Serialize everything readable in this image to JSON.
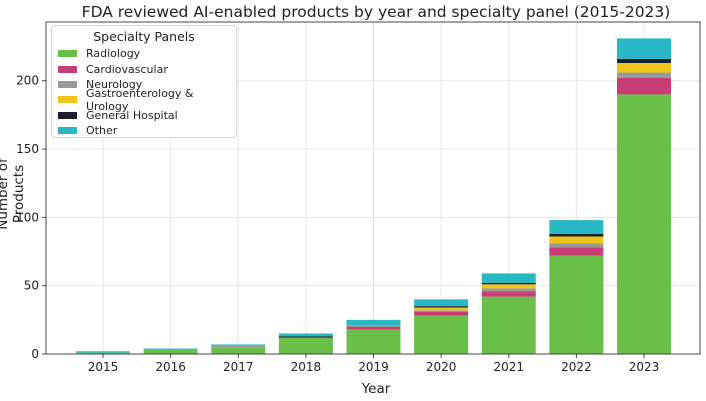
{
  "chart_data": {
    "type": "bar",
    "stacked": true,
    "title": "FDA reviewed AI-enabled products by year and specialty panel (2015-2023)",
    "xlabel": "Year",
    "ylabel": "Number of Products",
    "ylim": [
      0,
      243
    ],
    "yticks": [
      0,
      50,
      100,
      150,
      200
    ],
    "grid": true,
    "legend_title": "Specialty Panels",
    "legend_position": "top-left",
    "categories": [
      "2015",
      "2016",
      "2017",
      "2018",
      "2019",
      "2020",
      "2021",
      "2022",
      "2023"
    ],
    "series": [
      {
        "name": "Radiology",
        "color": "#6abf4b",
        "values": [
          1,
          3,
          5,
          12,
          18,
          28,
          42,
          72,
          190
        ]
      },
      {
        "name": "Cardiovascular",
        "color": "#c93d77",
        "values": [
          0,
          0,
          0,
          0,
          2,
          3,
          4,
          6,
          12
        ]
      },
      {
        "name": "Neurology",
        "color": "#999999",
        "values": [
          0,
          0,
          1,
          0,
          1,
          1,
          2,
          3,
          4
        ]
      },
      {
        "name": "Gastroenterology & Urology",
        "color": "#f0c419",
        "values": [
          0,
          0,
          0,
          0,
          0,
          2,
          3,
          5,
          7
        ]
      },
      {
        "name": "General Hospital",
        "color": "#1a1f2e",
        "values": [
          0,
          0,
          0,
          1,
          0,
          1,
          1,
          2,
          3
        ]
      },
      {
        "name": "Other",
        "color": "#2ab7c4",
        "values": [
          1,
          1,
          1,
          2,
          4,
          5,
          7,
          10,
          15
        ]
      }
    ]
  }
}
